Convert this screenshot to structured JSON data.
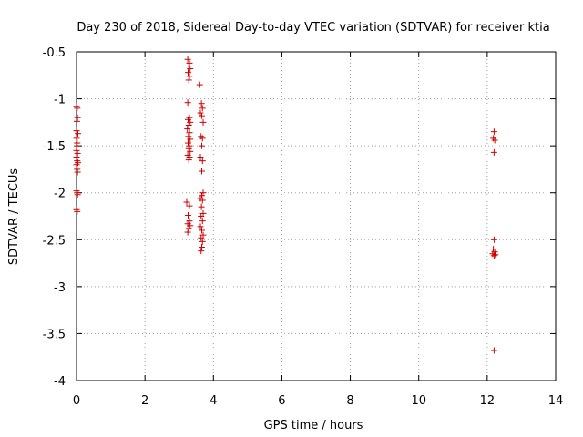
{
  "chart_data": {
    "type": "scatter",
    "title": "Day 230 of 2018, Sidereal Day-to-day VTEC variation (SDTVAR) for receiver ktia",
    "xlabel": "GPS time / hours",
    "ylabel": "SDTVAR / TECUs",
    "xlim": [
      0,
      14
    ],
    "ylim": [
      -4,
      -0.5
    ],
    "xticks": [
      0,
      2,
      4,
      6,
      8,
      10,
      12,
      14
    ],
    "xtick_labels": [
      "0",
      "2",
      "4",
      "6",
      "8",
      "10",
      "12",
      "14"
    ],
    "yticks": [
      -0.5,
      -1,
      -1.5,
      -2,
      -2.5,
      -3,
      -3.5,
      -4
    ],
    "ytick_labels": [
      "-0.5",
      "-1",
      "-1.5",
      "-2",
      "-2.5",
      "-3",
      "-3.5",
      "-4"
    ],
    "grid": true,
    "marker": "+",
    "color": "#cc0000",
    "series": [
      {
        "points": [
          [
            0.0,
            -1.08
          ],
          [
            0.02,
            -1.1
          ],
          [
            0.03,
            -1.2
          ],
          [
            0.01,
            -1.24
          ],
          [
            0.0,
            -1.34
          ],
          [
            0.04,
            -1.37
          ],
          [
            0.0,
            -1.42
          ],
          [
            0.02,
            -1.47
          ],
          [
            0.01,
            -1.5
          ],
          [
            0.0,
            -1.55
          ],
          [
            0.03,
            -1.58
          ],
          [
            0.0,
            -1.62
          ],
          [
            0.02,
            -1.66
          ],
          [
            0.04,
            -1.68
          ],
          [
            0.0,
            -1.7
          ],
          [
            0.02,
            -1.75
          ],
          [
            0.03,
            -1.78
          ],
          [
            0.0,
            -1.98
          ],
          [
            0.02,
            -2.0
          ],
          [
            0.03,
            -2.02
          ],
          [
            0.0,
            -2.18
          ],
          [
            0.02,
            -2.2
          ],
          [
            3.25,
            -0.58
          ],
          [
            3.3,
            -0.62
          ],
          [
            3.28,
            -0.65
          ],
          [
            3.32,
            -0.68
          ],
          [
            3.26,
            -0.72
          ],
          [
            3.3,
            -0.76
          ],
          [
            3.28,
            -0.8
          ],
          [
            3.25,
            -1.04
          ],
          [
            3.3,
            -1.2
          ],
          [
            3.26,
            -1.22
          ],
          [
            3.32,
            -1.25
          ],
          [
            3.28,
            -1.28
          ],
          [
            3.24,
            -1.32
          ],
          [
            3.3,
            -1.36
          ],
          [
            3.27,
            -1.4
          ],
          [
            3.32,
            -1.43
          ],
          [
            3.26,
            -1.47
          ],
          [
            3.3,
            -1.5
          ],
          [
            3.28,
            -1.53
          ],
          [
            3.32,
            -1.56
          ],
          [
            3.25,
            -1.6
          ],
          [
            3.3,
            -1.62
          ],
          [
            3.28,
            -1.65
          ],
          [
            3.22,
            -2.1
          ],
          [
            3.3,
            -2.14
          ],
          [
            3.26,
            -2.24
          ],
          [
            3.3,
            -2.3
          ],
          [
            3.25,
            -2.33
          ],
          [
            3.32,
            -2.35
          ],
          [
            3.28,
            -2.38
          ],
          [
            3.25,
            -2.42
          ],
          [
            3.6,
            -0.85
          ],
          [
            3.65,
            -1.05
          ],
          [
            3.68,
            -1.1
          ],
          [
            3.62,
            -1.15
          ],
          [
            3.66,
            -1.18
          ],
          [
            3.7,
            -1.25
          ],
          [
            3.64,
            -1.4
          ],
          [
            3.68,
            -1.42
          ],
          [
            3.66,
            -1.5
          ],
          [
            3.62,
            -1.62
          ],
          [
            3.68,
            -1.66
          ],
          [
            3.66,
            -1.77
          ],
          [
            3.7,
            -2.0
          ],
          [
            3.66,
            -2.03
          ],
          [
            3.62,
            -2.06
          ],
          [
            3.68,
            -2.08
          ],
          [
            3.65,
            -2.15
          ],
          [
            3.7,
            -2.22
          ],
          [
            3.64,
            -2.25
          ],
          [
            3.68,
            -2.3
          ],
          [
            3.62,
            -2.36
          ],
          [
            3.66,
            -2.4
          ],
          [
            3.7,
            -2.45
          ],
          [
            3.64,
            -2.48
          ],
          [
            3.68,
            -2.52
          ],
          [
            3.66,
            -2.58
          ],
          [
            3.64,
            -2.62
          ],
          [
            12.2,
            -1.35
          ],
          [
            12.18,
            -1.42
          ],
          [
            12.22,
            -1.44
          ],
          [
            12.2,
            -1.57
          ],
          [
            12.2,
            -2.5
          ],
          [
            12.18,
            -2.6
          ],
          [
            12.22,
            -2.63
          ],
          [
            12.16,
            -2.65
          ],
          [
            12.2,
            -2.67
          ],
          [
            12.24,
            -2.66
          ],
          [
            12.2,
            -3.68
          ]
        ]
      }
    ]
  }
}
